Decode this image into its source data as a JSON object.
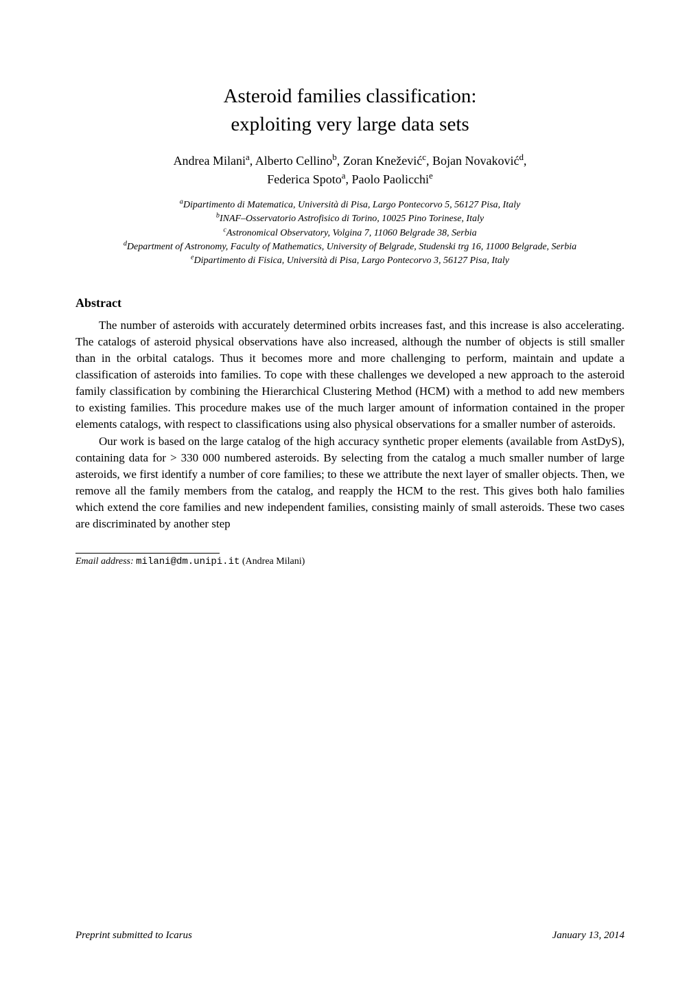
{
  "title": {
    "line1": "Asteroid families classification:",
    "line2": "exploiting very large data sets"
  },
  "authors": {
    "a1": {
      "name": "Andrea Milani",
      "sup": "a"
    },
    "a2": {
      "name": "Alberto Cellino",
      "sup": "b"
    },
    "a3": {
      "name": "Zoran Knežević",
      "sup": "c"
    },
    "a4": {
      "name": "Bojan Novaković",
      "sup": "d"
    },
    "a5": {
      "name": "Federica Spoto",
      "sup": "a"
    },
    "a6": {
      "name": "Paolo Paolicchi",
      "sup": "e"
    }
  },
  "affiliations": {
    "a": {
      "sup": "a",
      "text": "Dipartimento di Matematica, Università di Pisa, Largo Pontecorvo 5, 56127 Pisa, Italy"
    },
    "b": {
      "sup": "b",
      "text": "INAF–Osservatorio Astrofisico di Torino, 10025 Pino Torinese, Italy"
    },
    "c": {
      "sup": "c",
      "text": "Astronomical Observatory, Volgina 7, 11060 Belgrade 38, Serbia"
    },
    "d": {
      "sup": "d",
      "text": "Department of Astronomy, Faculty of Mathematics, University of Belgrade, Studenski trg 16, 11000 Belgrade, Serbia"
    },
    "e": {
      "sup": "e",
      "text": "Dipartimento di Fisica, Università di Pisa, Largo Pontecorvo 3, 56127 Pisa, Italy"
    }
  },
  "abstract": {
    "heading": "Abstract",
    "p1": "The number of asteroids with accurately determined orbits increases fast, and this increase is also accelerating. The catalogs of asteroid physical observations have also increased, although the number of objects is still smaller than in the orbital catalogs. Thus it becomes more and more challenging to perform, maintain and update a classification of asteroids into families. To cope with these challenges we developed a new approach to the asteroid family classification by combining the Hierarchical Clustering Method (HCM) with a method to add new members to existing families. This procedure makes use of the much larger amount of information contained in the proper elements catalogs, with respect to classifications using also physical observations for a smaller number of asteroids.",
    "p2": "Our work is based on the large catalog of the high accuracy synthetic proper elements (available from AstDyS), containing data for > 330 000 numbered asteroids. By selecting from the catalog a much smaller number of large asteroids, we first identify a number of core families; to these we attribute the next layer of smaller objects. Then, we remove all the family members from the catalog, and reapply the HCM to the rest. This gives both halo families which extend the core families and new independent families, consisting mainly of small asteroids. These two cases are discriminated by another step"
  },
  "footnote": {
    "label": "Email address:",
    "email": "milani@dm.unipi.it",
    "name": "(Andrea Milani)"
  },
  "footer": {
    "left": "Preprint submitted to Icarus",
    "right": "January 13, 2014"
  }
}
